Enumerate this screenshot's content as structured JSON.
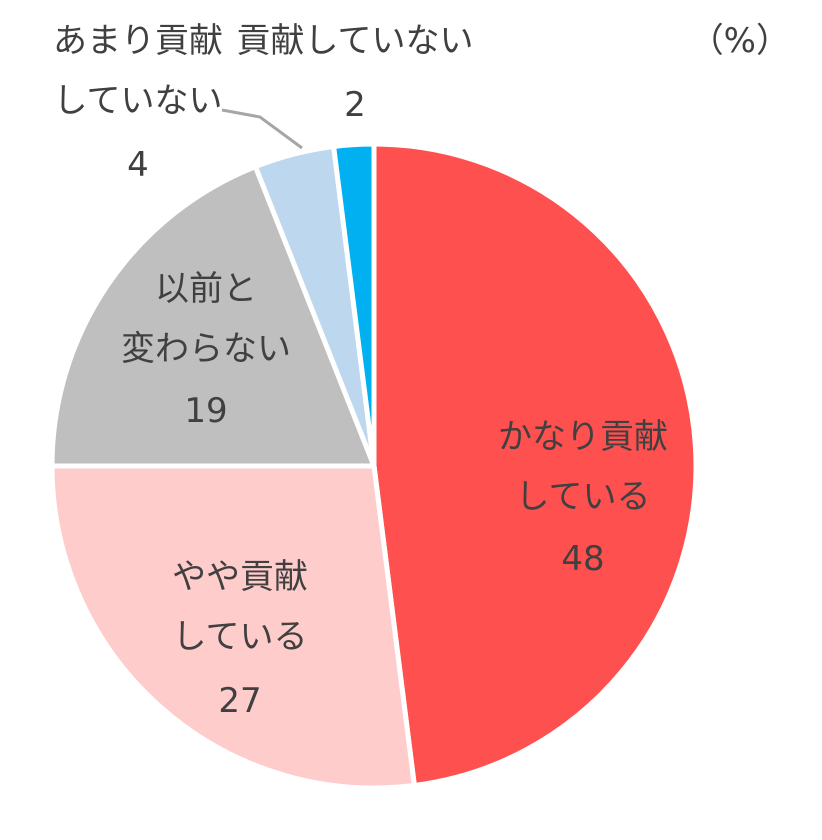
{
  "unit_label": "（%）",
  "chart_data": {
    "type": "pie",
    "title": "",
    "unit": "%",
    "start_angle_deg": 0,
    "direction": "clockwise",
    "slices": [
      {
        "label_lines": [
          "かなり貢献",
          "している"
        ],
        "value": 48,
        "color": "#ff5050"
      },
      {
        "label_lines": [
          "やや貢献",
          "している"
        ],
        "value": 27,
        "color": "#ffcccc"
      },
      {
        "label_lines": [
          "以前と",
          "変わらない"
        ],
        "value": 19,
        "color": "#bfbfbf"
      },
      {
        "label_lines": [
          "あまり貢献",
          "していない"
        ],
        "value": 4,
        "color": "#bdd7ee"
      },
      {
        "label_lines": [
          "貢献していない"
        ],
        "value": 2,
        "color": "#00b0f0"
      }
    ]
  }
}
